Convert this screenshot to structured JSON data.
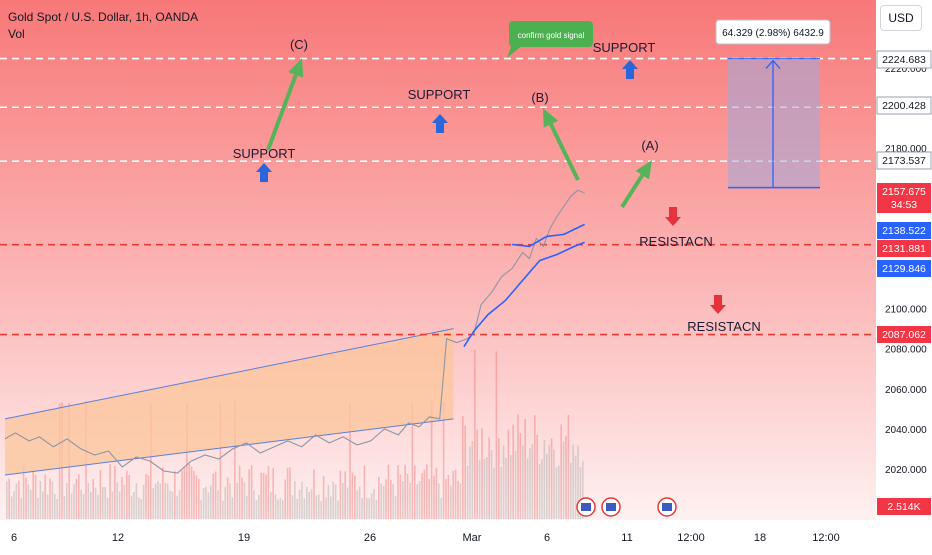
{
  "header": {
    "title": "Gold Spot / U.S. Dollar, 1h, OANDA",
    "volume_label": "Vol",
    "currency": "USD"
  },
  "chart_data": {
    "type": "line",
    "title": "Gold Spot / U.S. Dollar, 1h, OANDA",
    "x_ticks": [
      "6",
      "12",
      "19",
      "26",
      "Mar",
      "6",
      "11",
      "12:00",
      "18",
      "12:00"
    ],
    "y_ticks": [
      2220,
      2200,
      2180,
      2160,
      2140,
      2120,
      2100,
      2080,
      2060,
      2040,
      2020
    ],
    "y_tick_labels": [
      "2220.000",
      "2200.000",
      "2180.000",
      "2160.000",
      "2140.000",
      "2120.000",
      "2100.000",
      "2080.000",
      "2060.000",
      "2040.000",
      "2020.000"
    ],
    "ylim": [
      2010,
      2235
    ],
    "price_path": [
      [
        0,
        2035
      ],
      [
        0.3,
        2038
      ],
      [
        0.7,
        2034
      ],
      [
        1.0,
        2036
      ],
      [
        1.4,
        2031
      ],
      [
        1.8,
        2035
      ],
      [
        2.2,
        2030
      ],
      [
        2.6,
        2027
      ],
      [
        3.0,
        2029
      ],
      [
        3.4,
        2021
      ],
      [
        3.8,
        2026
      ],
      [
        4.2,
        2024
      ],
      [
        4.6,
        2019
      ],
      [
        5.0,
        2018
      ],
      [
        5.4,
        2024
      ],
      [
        5.8,
        2027
      ],
      [
        6.2,
        2025
      ],
      [
        6.6,
        2030
      ],
      [
        7.0,
        2033
      ],
      [
        7.4,
        2028
      ],
      [
        7.8,
        2031
      ],
      [
        8.2,
        2034
      ],
      [
        8.6,
        2031
      ],
      [
        9.0,
        2037
      ],
      [
        9.4,
        2033
      ],
      [
        9.8,
        2036
      ],
      [
        10.2,
        2032
      ],
      [
        10.6,
        2034
      ],
      [
        11.0,
        2040
      ],
      [
        11.4,
        2037
      ],
      [
        11.7,
        2043
      ],
      [
        12.0,
        2041
      ],
      [
        12.3,
        2046
      ],
      [
        12.6,
        2045
      ],
      [
        12.8,
        2085
      ],
      [
        13.1,
        2083
      ],
      [
        13.4,
        2085
      ],
      [
        13.6,
        2088
      ],
      [
        13.8,
        2102
      ],
      [
        14.1,
        2108
      ],
      [
        14.4,
        2116
      ],
      [
        14.7,
        2120
      ],
      [
        15.0,
        2128
      ],
      [
        15.2,
        2125
      ],
      [
        15.4,
        2135
      ],
      [
        15.6,
        2131
      ],
      [
        15.8,
        2140
      ],
      [
        16.0,
        2146
      ],
      [
        16.2,
        2151
      ],
      [
        16.4,
        2156
      ],
      [
        16.6,
        2159
      ],
      [
        16.8,
        2157.675
      ]
    ],
    "moving_average": [
      [
        13.3,
        2081
      ],
      [
        13.6,
        2089
      ],
      [
        14.0,
        2097
      ],
      [
        14.5,
        2104
      ],
      [
        15.0,
        2114
      ],
      [
        15.5,
        2124
      ],
      [
        16.0,
        2127
      ],
      [
        16.5,
        2131
      ],
      [
        16.8,
        2133
      ]
    ],
    "moving_average_upper": [
      [
        14.7,
        2132
      ],
      [
        15.2,
        2131
      ],
      [
        15.7,
        2136
      ],
      [
        16.2,
        2137
      ],
      [
        16.8,
        2142
      ]
    ],
    "channel_upper": [
      [
        0,
        2045
      ],
      [
        13.0,
        2090
      ]
    ],
    "channel_lower": [
      [
        0,
        2017
      ],
      [
        13.0,
        2045
      ]
    ],
    "horizontal_levels": [
      2224.683,
      2200.428,
      2173.537,
      2131.881,
      2087.062
    ],
    "price_labels": [
      {
        "text": "2224.683",
        "color": "#ffffff"
      },
      {
        "text": "2200.428",
        "color": "#ffffff"
      },
      {
        "text": "2173.537",
        "color": "#ffffff"
      },
      {
        "text": "2157.675",
        "sub": "34:53",
        "color": "#f23645"
      },
      {
        "text": "2138.522",
        "color": "#2962ff"
      },
      {
        "text": "2131.881",
        "color": "#f23645"
      },
      {
        "text": "2129.846",
        "color": "#2962ff"
      },
      {
        "text": "2087.062",
        "color": "#f23645"
      },
      {
        "text": "2.514K",
        "color": "#f23645"
      }
    ],
    "annotations": [
      {
        "text": "(C)"
      },
      {
        "text": "(B)"
      },
      {
        "text": "(A)"
      },
      {
        "text": "SUPPORT"
      },
      {
        "text": "SUPPORT"
      },
      {
        "text": "SUPPORT"
      },
      {
        "text": "RESISTACN"
      },
      {
        "text": "RESISTACN"
      },
      {
        "text": "confirm gold signal"
      }
    ],
    "measure_box": {
      "label": "64.329 (2.98%) 6432.9",
      "from": 2160.354,
      "to": 2224.683
    },
    "colors": {
      "bg_top": "#f87676",
      "bg_bottom": "#ffe9e9",
      "red": "#f23645",
      "blue": "#2962ff",
      "green": "#5cb85c",
      "channel": "#fbc59b"
    }
  }
}
